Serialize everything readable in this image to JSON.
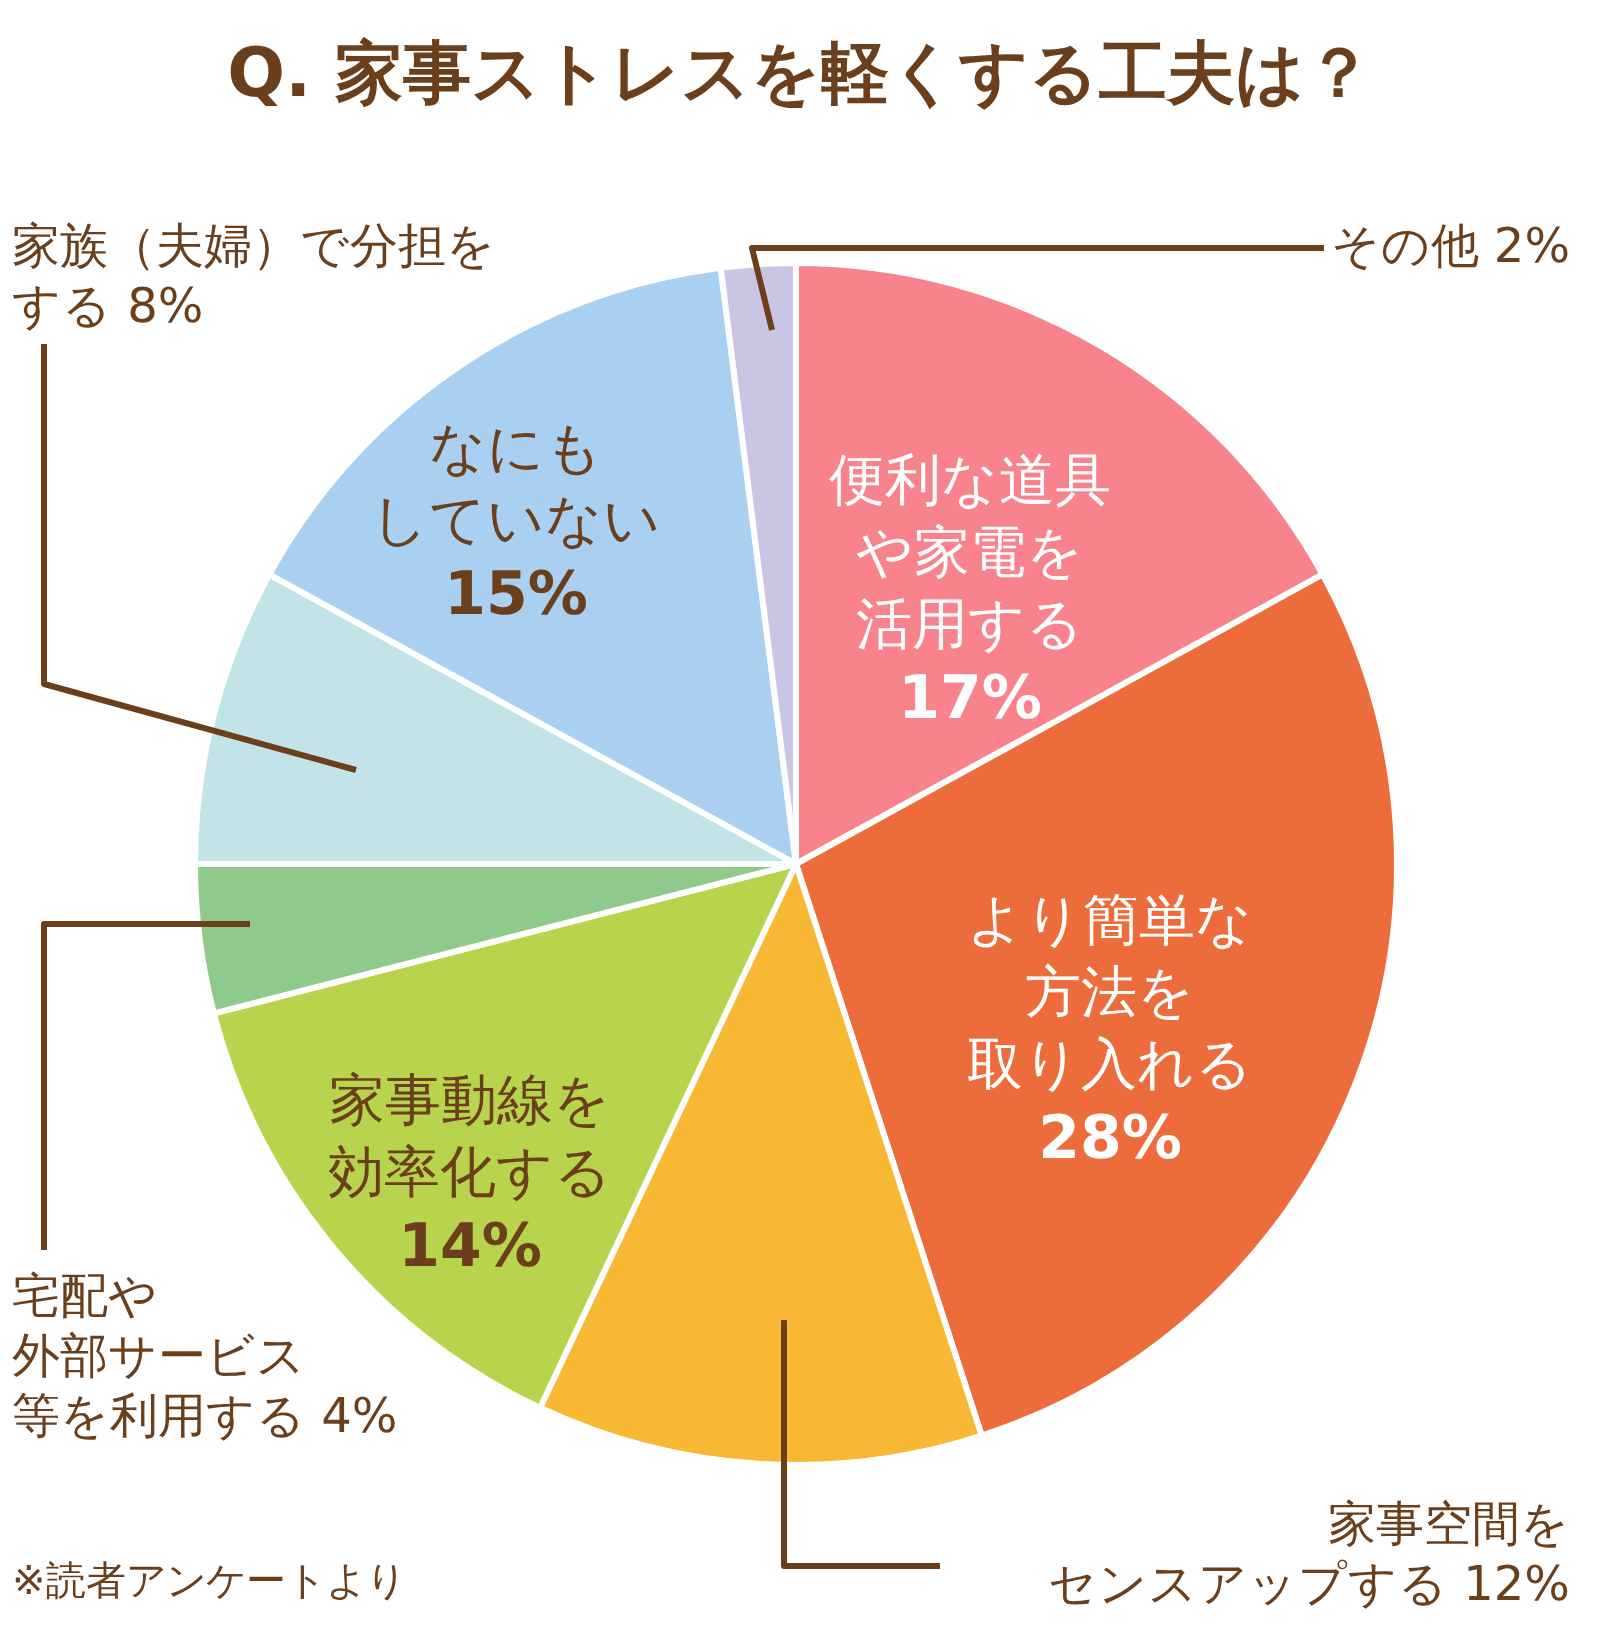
{
  "chart_data": {
    "type": "pie",
    "title": "Q. 家事ストレスを軽くする工夫は？",
    "categories": [
      "便利な道具や家電を活用する",
      "より簡単な方法を取り入れる",
      "家事空間をセンスアップする",
      "家事動線を効率化する",
      "宅配や外部サービス等を利用する",
      "家族（夫婦）で分担をする",
      "なにもしていない",
      "その他"
    ],
    "values": [
      17,
      28,
      12,
      14,
      4,
      8,
      15,
      2
    ],
    "value_labels": [
      "17%",
      "28%",
      "12%",
      "14%",
      "4%",
      "8%",
      "15%",
      "2%"
    ],
    "colors": [
      "#f9838c",
      "#ec6c3c",
      "#f8b834",
      "#b8d44c",
      "#8fca8c",
      "#c2e4e8",
      "#a9d0f0",
      "#cbc5e4"
    ],
    "legend": false,
    "annotations": [
      "※読者アンケートより"
    ]
  }
}
